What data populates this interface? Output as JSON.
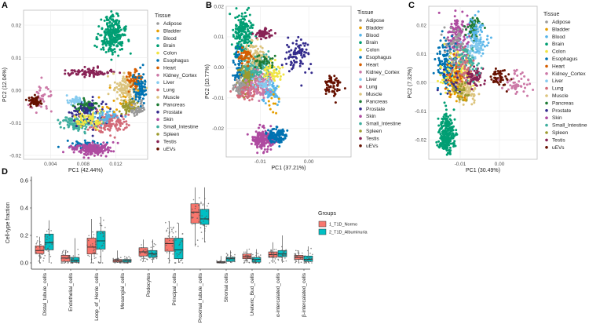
{
  "tissues": [
    "Adipose",
    "Bladder",
    "Blood",
    "Brain",
    "Colon",
    "Esophagus",
    "Heart",
    "Kidney_Cortex",
    "Liver",
    "Lung",
    "Muscle",
    "Pancreas",
    "Prostate",
    "Skin",
    "Small_Intestine",
    "Spleen",
    "Testis",
    "uEVs"
  ],
  "tissue_colors": {
    "Adipose": "#9a9a9a",
    "Bladder": "#E69F00",
    "Blood": "#56B4E9",
    "Brain": "#009E73",
    "Colon": "#F0E442",
    "Esophagus": "#0072B2",
    "Heart": "#D55E00",
    "Kidney_Cortex": "#CC79A7",
    "Liver": "#86CBEF",
    "Lung": "#D26A78",
    "Muscle": "#DCC47E",
    "Pancreas": "#1E7B35",
    "Prostate": "#332A8C",
    "Skin": "#AE4BA0",
    "Small_Intestine": "#3FAE9E",
    "Spleen": "#9C9A2E",
    "Testis": "#882255",
    "uEVs": "#661100"
  },
  "chart_data": [
    {
      "panel": "A",
      "type": "scatter",
      "xlabel": "PC1 (42.44%)",
      "ylabel": "PC2 (12.04%)",
      "legend_title": "Tissue",
      "legend_placement": "right",
      "xlim": [
        0.0007,
        0.0159
      ],
      "ylim": [
        -0.0212,
        0.0246
      ],
      "xticks": [
        0.004,
        0.008,
        0.012
      ],
      "xtick_labels": [
        "0.004",
        "0.008",
        "0.012"
      ],
      "yticks": [
        -0.02,
        -0.01,
        0.0,
        0.01,
        0.02
      ],
      "ytick_labels": [
        "-0.02",
        "-0.01",
        "0.00",
        "0.01",
        "0.02"
      ],
      "clusters": [
        [
          "Brain",
          0.0115,
          0.017,
          0.0008,
          0.003,
          250
        ],
        [
          "Testis",
          0.0085,
          0.0055,
          0.0015,
          0.0006,
          80
        ],
        [
          "Kidney_Cortex",
          0.003,
          -0.002,
          0.0008,
          0.002,
          40
        ],
        [
          "uEVs",
          0.002,
          -0.0035,
          0.0004,
          0.0008,
          60
        ],
        [
          "Muscle",
          0.0135,
          0.0,
          0.0008,
          0.0025,
          150
        ],
        [
          "Heart",
          0.0142,
          0.003,
          0.0005,
          0.0015,
          60
        ],
        [
          "Esophagus",
          0.015,
          0.0,
          0.0004,
          0.003,
          80
        ],
        [
          "Esophagus",
          0.0088,
          -0.017,
          0.0012,
          0.0008,
          60
        ],
        [
          "Skin",
          0.009,
          -0.018,
          0.0012,
          0.001,
          200
        ],
        [
          "Spleen",
          0.0135,
          -0.005,
          0.0005,
          0.0012,
          60
        ],
        [
          "Lung",
          0.011,
          -0.01,
          0.0012,
          0.0015,
          150
        ],
        [
          "Small_Intestine",
          0.0075,
          -0.01,
          0.0012,
          0.001,
          120
        ],
        [
          "Pancreas",
          0.0085,
          -0.005,
          0.0006,
          0.0012,
          80
        ],
        [
          "Prostate",
          0.0085,
          -0.007,
          0.0012,
          0.002,
          80
        ],
        [
          "Liver",
          0.007,
          -0.003,
          0.0005,
          0.0007,
          40
        ],
        [
          "Colon",
          0.009,
          -0.009,
          0.001,
          0.0012,
          60
        ],
        [
          "Adipose",
          0.0145,
          -0.006,
          0.0005,
          0.001,
          40
        ],
        [
          "Blood",
          0.0105,
          -0.008,
          0.001,
          0.0012,
          40
        ],
        [
          "Bladder",
          0.012,
          -0.003,
          0.001,
          0.002,
          15
        ]
      ]
    },
    {
      "panel": "B",
      "type": "scatter",
      "xlabel": "PC1 (37.21%)",
      "ylabel": "PC2 (10.77%)",
      "legend_title": "Tissue",
      "legend_placement": "right",
      "xlim": [
        -0.017,
        0.0087
      ],
      "ylim": [
        -0.0293,
        0.02
      ],
      "xticks": [
        -0.01,
        0.0
      ],
      "xtick_labels": [
        "-0.01",
        "0.00"
      ],
      "yticks": [
        -0.02,
        -0.01,
        0.0,
        0.01,
        0.02
      ],
      "ytick_labels": [
        "-0.02",
        "-0.01",
        "0.00",
        "0.01",
        "0.02"
      ],
      "clusters": [
        [
          "Brain",
          -0.0135,
          0.011,
          0.001,
          0.004,
          200
        ],
        [
          "Testis",
          -0.0095,
          0.011,
          0.0008,
          0.0008,
          60
        ],
        [
          "Prostate",
          -0.0025,
          0.004,
          0.0015,
          0.003,
          80
        ],
        [
          "uEVs",
          0.005,
          -0.006,
          0.0008,
          0.0018,
          60
        ],
        [
          "Skin",
          -0.0095,
          -0.0235,
          0.0012,
          0.0015,
          200
        ],
        [
          "Esophagus",
          -0.0065,
          -0.0225,
          0.001,
          0.0012,
          120
        ],
        [
          "Esophagus",
          -0.0145,
          0.0,
          0.0006,
          0.003,
          60
        ],
        [
          "Spleen",
          -0.0125,
          -0.003,
          0.0008,
          0.002,
          150
        ],
        [
          "Lung",
          -0.0125,
          -0.008,
          0.0012,
          0.0012,
          100
        ],
        [
          "Small_Intestine",
          -0.0105,
          0.0,
          0.0015,
          0.002,
          150
        ],
        [
          "Muscle",
          -0.011,
          0.004,
          0.001,
          0.002,
          80
        ],
        [
          "Heart",
          -0.013,
          0.003,
          0.0008,
          0.0015,
          40
        ],
        [
          "Colon",
          -0.0075,
          -0.002,
          0.001,
          0.002,
          60
        ],
        [
          "Blood",
          -0.008,
          -0.008,
          0.001,
          0.0015,
          60
        ],
        [
          "Adipose",
          -0.014,
          -0.006,
          0.0008,
          0.0015,
          40
        ],
        [
          "Kidney_Cortex",
          -0.01,
          -0.006,
          0.0012,
          0.002,
          80
        ],
        [
          "Pancreas",
          -0.0095,
          0.002,
          0.001,
          0.001,
          30
        ],
        [
          "Bladder",
          -0.0075,
          -0.012,
          0.001,
          0.002,
          10
        ],
        [
          "Liver",
          -0.009,
          -0.005,
          0.001,
          0.001,
          30
        ]
      ]
    },
    {
      "panel": "C",
      "type": "scatter",
      "xlabel": "PC1 (30.49%)",
      "ylabel": "PC2 (7.32%)",
      "legend_title": "Tissue",
      "legend_placement": "right",
      "xlim": [
        -0.018,
        0.0096
      ],
      "ylim": [
        -0.0268,
        0.0266
      ],
      "xticks": [
        -0.01,
        0.0
      ],
      "xtick_labels": [
        "-0.01",
        "0.00"
      ],
      "yticks": [
        -0.02,
        -0.01,
        0.0,
        0.01,
        0.02
      ],
      "ytick_labels": [
        "-0.02",
        "-0.01",
        "0.00",
        "0.01",
        "0.02"
      ],
      "clusters": [
        [
          "Brain",
          -0.0135,
          -0.018,
          0.001,
          0.0035,
          250
        ],
        [
          "Skin",
          -0.0105,
          0.015,
          0.0015,
          0.004,
          150
        ],
        [
          "Pancreas",
          -0.0065,
          0.019,
          0.001,
          0.002,
          60
        ],
        [
          "Blood",
          -0.0055,
          0.015,
          0.0012,
          0.003,
          80
        ],
        [
          "Esophagus",
          -0.0135,
          0.006,
          0.0015,
          0.004,
          150
        ],
        [
          "Colon",
          -0.011,
          0.003,
          0.002,
          0.004,
          120
        ],
        [
          "Heart",
          -0.011,
          0.002,
          0.0015,
          0.003,
          60
        ],
        [
          "Muscle",
          -0.0085,
          -0.003,
          0.0015,
          0.002,
          100
        ],
        [
          "Testis",
          -0.0065,
          0.002,
          0.001,
          0.0015,
          70
        ],
        [
          "uEVs",
          0.0,
          0.002,
          0.0012,
          0.0018,
          50
        ],
        [
          "Kidney_Cortex",
          0.0045,
          -0.0005,
          0.0015,
          0.002,
          50
        ],
        [
          "Adipose",
          -0.011,
          0.011,
          0.0015,
          0.004,
          60
        ],
        [
          "Small_Intestine",
          -0.008,
          0.008,
          0.0015,
          0.003,
          60
        ],
        [
          "Liver",
          -0.006,
          0.012,
          0.0012,
          0.002,
          40
        ],
        [
          "Prostate",
          -0.0115,
          0.0,
          0.0015,
          0.003,
          20
        ],
        [
          "Lung",
          -0.009,
          0.004,
          0.0015,
          0.003,
          30
        ],
        [
          "Spleen",
          -0.0095,
          -0.003,
          0.001,
          0.002,
          30
        ],
        [
          "Bladder",
          -0.011,
          -0.004,
          0.001,
          0.002,
          15
        ]
      ]
    },
    {
      "panel": "D",
      "type": "box",
      "ylabel": "Cell-type fraction",
      "ylim": [
        -0.02,
        0.62
      ],
      "yticks": [
        0.0,
        0.2,
        0.4,
        0.6
      ],
      "ytick_labels": [
        "0.0",
        "0.2",
        "0.4",
        "0.6"
      ],
      "legend_title": "Groups",
      "legend_placement": "right",
      "categories": [
        "Distal_tubule_cells",
        "Endothelial_cells",
        "Loop_of_Henle_cells",
        "Mesangial_cells",
        "Podocytes",
        "Principal_cells",
        "Proximal_tubule_cells",
        "Stromal cells",
        "Ureteric_Bud_cells",
        "α-intercalated_cells",
        "β-intercalated_cells"
      ],
      "series": [
        {
          "name": "1_T1D_Normo",
          "color": "#F8766D",
          "stats": [
            [
              0,
              0.067,
              0.09,
              0.124,
              0.19
            ],
            [
              0,
              0.01,
              0.035,
              0.055,
              0.09
            ],
            [
              0,
              0.065,
              0.115,
              0.18,
              0.32
            ],
            [
              0,
              0.005,
              0.015,
              0.025,
              0.09
            ],
            [
              0.01,
              0.05,
              0.08,
              0.11,
              0.17
            ],
            [
              0,
              0.085,
              0.14,
              0.18,
              0.3
            ],
            [
              0.12,
              0.29,
              0.37,
              0.43,
              0.55
            ],
            [
              0,
              0.0,
              0.005,
              0.01,
              0.05
            ],
            [
              0,
              0.03,
              0.045,
              0.065,
              0.1
            ],
            [
              0,
              0.04,
              0.06,
              0.08,
              0.15
            ],
            [
              0,
              0.025,
              0.04,
              0.055,
              0.09
            ]
          ]
        },
        {
          "name": "2_T1D_Albuminuria",
          "color": "#00BFC4",
          "stats": [
            [
              0,
              0.095,
              0.147,
              0.21,
              0.31
            ],
            [
              0,
              0.005,
              0.02,
              0.04,
              0.18
            ],
            [
              0,
              0.1,
              0.16,
              0.23,
              0.33
            ],
            [
              0,
              0.005,
              0.015,
              0.025,
              0.045
            ],
            [
              0,
              0.04,
              0.065,
              0.09,
              0.17
            ],
            [
              0,
              0.03,
              0.095,
              0.18,
              0.29
            ],
            [
              0.15,
              0.28,
              0.32,
              0.39,
              0.55
            ],
            [
              0,
              0.01,
              0.03,
              0.04,
              0.09
            ],
            [
              0,
              0.005,
              0.025,
              0.04,
              0.1
            ],
            [
              0,
              0.045,
              0.065,
              0.09,
              0.2
            ],
            [
              0,
              0.01,
              0.025,
              0.05,
              0.12
            ]
          ]
        }
      ]
    }
  ]
}
